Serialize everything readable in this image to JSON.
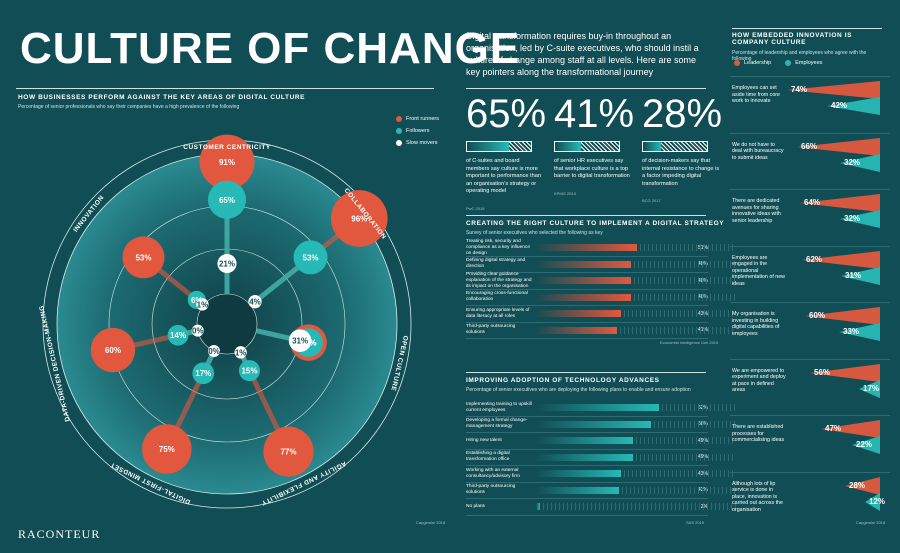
{
  "title": "CULTURE OF CHANGE",
  "intro": "Digital transformation requires buy-in throughout an organisation, led by C-suite executives, who should instil a culture of change among staff at all levels. Here are some key pointers along the transformational journey",
  "logo": "RACONTEUR",
  "colors": {
    "front": "#e2583e",
    "follow": "#27b9b5",
    "slow": "#ffffff",
    "bg": "#114d54"
  },
  "left": {
    "heading": "HOW BUSINESSES PERFORM AGAINST THE KEY AREAS OF DIGITAL CULTURE",
    "subheading": "Percentage of senior professionals who say their companies have a high prevalence of the following",
    "legend": [
      "Front runners",
      "Followers",
      "Slow movers"
    ],
    "footnote": "Capgemini 2018"
  },
  "stats": [
    {
      "value": "65%",
      "pct": 65,
      "desc": "of C-suites and board members say culture is more important to performance than an organisation's strategy or operating model",
      "source": "PwC 2018"
    },
    {
      "value": "41%",
      "pct": 41,
      "desc": "of senior HR executives say that workplace culture is a top barrier to digital transformation",
      "source": "KPMG 2019"
    },
    {
      "value": "28%",
      "pct": 28,
      "desc": "of decision-makers say that internal resistance to change is a factor impeding digital transformation",
      "source": "BCG 2017"
    }
  ],
  "strategy": {
    "heading": "CREATING THE RIGHT CULTURE TO IMPLEMENT A DIGITAL STRATEGY",
    "subheading": "Survey of senior executives who selected the following as key",
    "footnote": "Economist Intelligence Unit 2019",
    "items": [
      {
        "label": "Treating risk, security and compliance as a key influence on design",
        "value": 51,
        "display": "51%"
      },
      {
        "label": "Defining digital strategy and direction",
        "value": 48,
        "display": "48%"
      },
      {
        "label": "Providing clear guidance explanation of the strategy and its impact on the organisation",
        "value": 48,
        "display": "48%"
      },
      {
        "label": "Encouraging cross-functional collaboration",
        "value": 48,
        "display": "48%"
      },
      {
        "label": "Ensuring appropriate levels of data literacy at all roles",
        "value": 43,
        "display": "43%"
      },
      {
        "label": "Third-party outsourcing solutions",
        "value": 41,
        "display": "41%"
      }
    ]
  },
  "adoption": {
    "heading": "IMPROVING ADOPTION OF TECHNOLOGY ADVANCES",
    "subheading": "Percentage of senior executives who are deploying the following plans to enable and ensure adoption",
    "footnote": "SAS 2019",
    "items": [
      {
        "label": "Implementing training to upskill current employees",
        "value": 62,
        "display": "62%"
      },
      {
        "label": "Developing a formal change- management strategy",
        "value": 58,
        "display": "58%"
      },
      {
        "label": "Hiring new talent",
        "value": 49,
        "display": "49%"
      },
      {
        "label": "Establishing a digital transformation office",
        "value": 49,
        "display": "49%"
      },
      {
        "label": "Working with an external consultancy/advisory firm",
        "value": 43,
        "display": "43%"
      },
      {
        "label": "Third-party outsourcing solutions",
        "value": 42,
        "display": "42%"
      },
      {
        "label": "No plans",
        "value": 2,
        "display": "2%"
      }
    ]
  },
  "innovation": {
    "heading": "HOW EMBEDDED INNOVATION IS COMPANY CULTURE",
    "subheading": "Percentage of leadership and employees who agree with the following",
    "legend": [
      "Leadership",
      "Employees"
    ],
    "footnote": "Capgemini 2018",
    "items": [
      {
        "label": "Employees can set aside time from core work to innovate",
        "lead": 74,
        "emp": 42,
        "lead_display": "74%",
        "emp_display": "42%"
      },
      {
        "label": "We do not have to deal with bureaucracy to submit ideas",
        "lead": 66,
        "emp": 32,
        "lead_display": "66%",
        "emp_display": "32%"
      },
      {
        "label": "There are dedicated avenues for sharing innovative ideas with senior leadership",
        "lead": 64,
        "emp": 32,
        "lead_display": "64%",
        "emp_display": "32%"
      },
      {
        "label": "Employees are engaged in the operational implementation of new ideas",
        "lead": 62,
        "emp": 31,
        "lead_display": "62%",
        "emp_display": "31%"
      },
      {
        "label": "My organisation is investing in building digital capabilities of employees",
        "lead": 60,
        "emp": 33,
        "lead_display": "60%",
        "emp_display": "33%"
      },
      {
        "label": "We are empowered to experiment and deploy at pace in defined areas",
        "lead": 56,
        "emp": 17,
        "lead_display": "56%",
        "emp_display": "17%"
      },
      {
        "label": "There are established processes for commercialising ideas",
        "lead": 47,
        "emp": 22,
        "lead_display": "47%",
        "emp_display": "22%"
      },
      {
        "label": "Although lots of lip service is done in place, innovation is carried out across the organisation",
        "lead": 28,
        "emp": 12,
        "lead_display": "28%",
        "emp_display": "12%"
      }
    ]
  },
  "chart_data": {
    "type": "radial",
    "title": "HOW BUSINESSES PERFORM AGAINST THE KEY AREAS OF DIGITAL CULTURE",
    "categories": [
      "Customer centricity",
      "Collaboration",
      "Open culture",
      "Agility and flexibility",
      "Digital-first mindset",
      "Data-driven decision-making",
      "Innovation"
    ],
    "series": [
      {
        "name": "Front runners",
        "values": [
          91,
          96,
          37,
          77,
          75,
          60,
          53
        ]
      },
      {
        "name": "Followers",
        "values": [
          65,
          53,
          37,
          15,
          17,
          14,
          6
        ]
      },
      {
        "name": "Slow movers",
        "values": [
          21,
          4,
          31,
          1,
          0,
          0,
          1
        ]
      }
    ],
    "labels": {
      "front": [
        "91%",
        "96%",
        "37%",
        "77%",
        "75%",
        "60%",
        "53%"
      ],
      "follow": [
        "65%",
        "53%",
        "37%",
        "15%",
        "17%",
        "14%",
        "6%"
      ],
      "slow": [
        "21%",
        "4%",
        "31%",
        "1%",
        "0%",
        "0%",
        "1%"
      ]
    }
  }
}
